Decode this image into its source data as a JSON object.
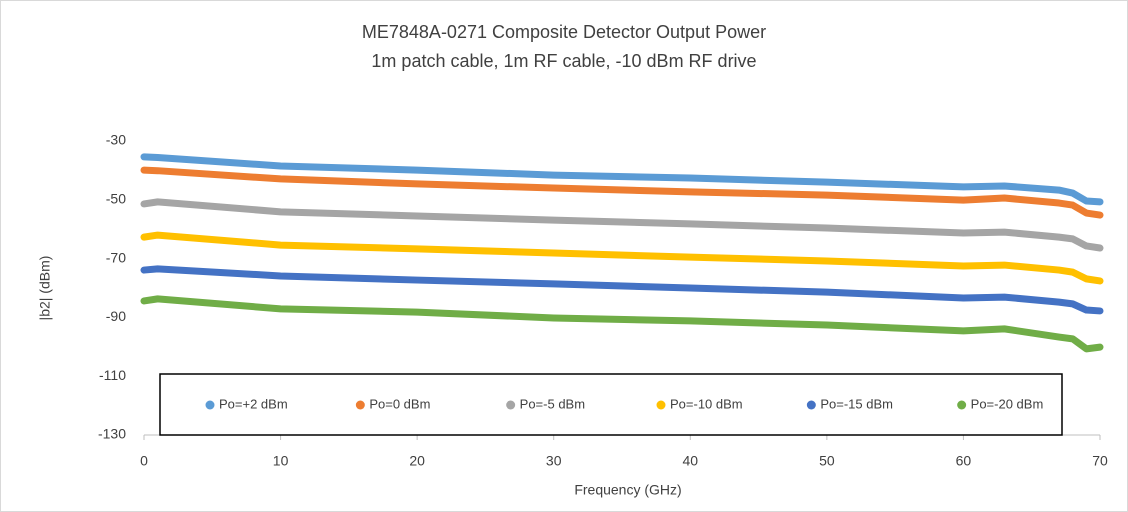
{
  "chart_data": {
    "type": "line",
    "title": "ME7848A-0271 Composite Detector Output Power",
    "subtitle": "1m patch cable, 1m RF cable, -10 dBm RF drive",
    "x_label": "Frequency (GHz)",
    "y_label": "|b2| (dBm)",
    "x": [
      0,
      1,
      10,
      20,
      30,
      40,
      50,
      60,
      63,
      67,
      68,
      69,
      70
    ],
    "series": [
      {
        "name": "Po=+2 dBm",
        "color": "#5b9bd5",
        "values": [
          -35.4,
          -35.6,
          -38.5,
          -39.9,
          -41.6,
          -42.6,
          -44.0,
          -45.6,
          -45.3,
          -46.7,
          -47.7,
          -50.4,
          -50.7
        ]
      },
      {
        "name": "Po=0 dBm",
        "color": "#ed7d31",
        "values": [
          -39.9,
          -40.1,
          -42.9,
          -44.6,
          -46.0,
          -47.3,
          -48.4,
          -50.1,
          -49.4,
          -51.1,
          -51.8,
          -54.5,
          -55.2
        ]
      },
      {
        "name": "Po=-5 dBm",
        "color": "#a5a5a5",
        "values": [
          -51.4,
          -50.7,
          -54.1,
          -55.5,
          -56.9,
          -58.2,
          -59.6,
          -61.3,
          -61.0,
          -62.7,
          -63.3,
          -65.7,
          -66.4
        ]
      },
      {
        "name": "Po=-10 dBm",
        "color": "#ffc000",
        "values": [
          -62.7,
          -62.0,
          -65.4,
          -66.7,
          -68.1,
          -69.5,
          -70.8,
          -72.5,
          -72.2,
          -73.9,
          -74.6,
          -76.9,
          -77.6
        ]
      },
      {
        "name": "Po=-15 dBm",
        "color": "#4472c4",
        "values": [
          -73.9,
          -73.5,
          -75.9,
          -77.3,
          -78.6,
          -80.0,
          -81.4,
          -83.4,
          -83.1,
          -84.8,
          -85.4,
          -87.5,
          -87.8
        ]
      },
      {
        "name": "Po=-20 dBm",
        "color": "#70ad47",
        "values": [
          -84.4,
          -83.7,
          -87.1,
          -88.2,
          -90.2,
          -91.2,
          -92.6,
          -94.6,
          -93.9,
          -96.7,
          -97.3,
          -100.7,
          -100.1
        ]
      }
    ],
    "xlim": [
      0,
      70
    ],
    "xticks": [
      0,
      10,
      20,
      30,
      40,
      50,
      60,
      70
    ],
    "ylim": [
      -130,
      -30
    ],
    "yticks": [
      -130,
      -110,
      -90,
      -70,
      -50,
      -30
    ],
    "grid": false,
    "legend": "bottom"
  }
}
